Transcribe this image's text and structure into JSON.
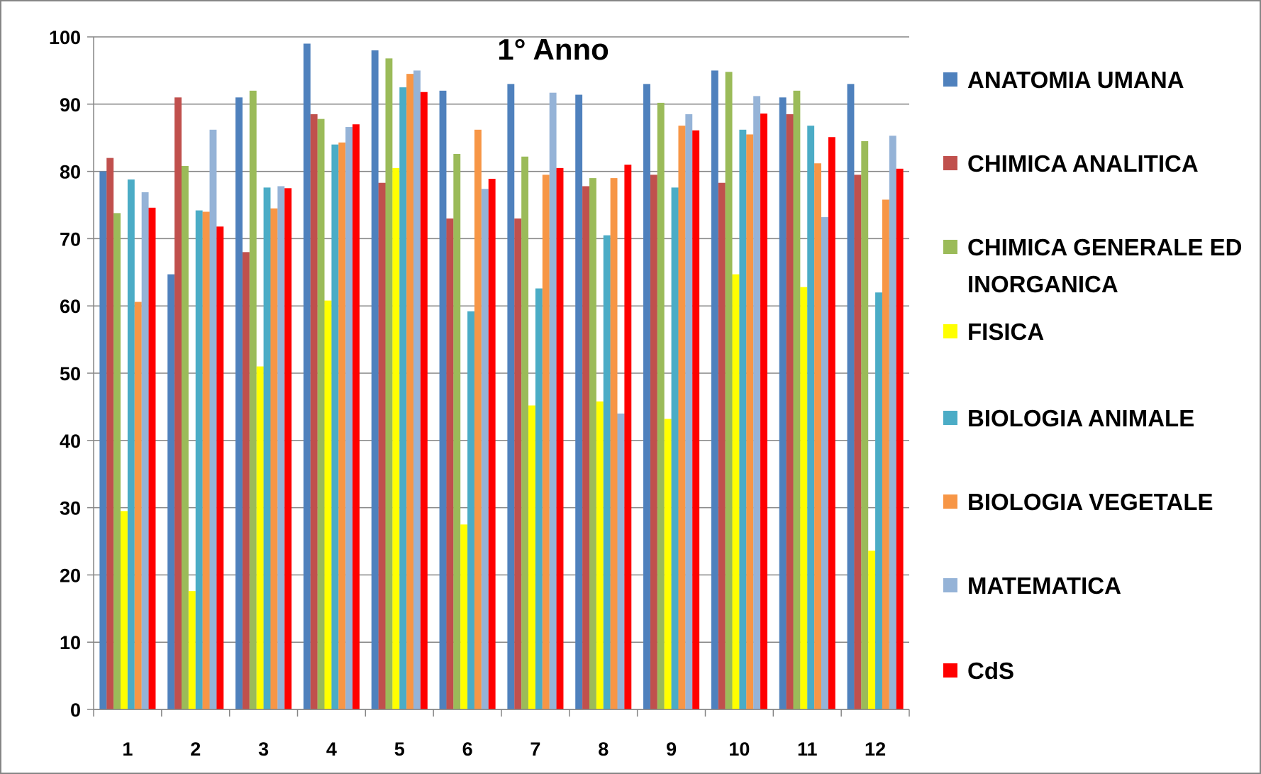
{
  "chart_data": {
    "type": "bar",
    "title": "1° Anno",
    "xlabel": "",
    "ylabel": "",
    "categories": [
      "1",
      "2",
      "3",
      "4",
      "5",
      "6",
      "7",
      "8",
      "9",
      "10",
      "11",
      "12"
    ],
    "ylim": [
      0,
      100
    ],
    "yticks": [
      0,
      10,
      20,
      30,
      40,
      50,
      60,
      70,
      80,
      90,
      100
    ],
    "grid": true,
    "legend_position": "right",
    "series": [
      {
        "name": "ANATOMIA UMANA",
        "color": "#4F81BD",
        "values": [
          80,
          64.7,
          91,
          99,
          98,
          92,
          93,
          91.4,
          93,
          95,
          91,
          93
        ]
      },
      {
        "name": "CHIMICA ANALITICA",
        "color": "#C0504D",
        "values": [
          82,
          91,
          68,
          88.5,
          78.3,
          73,
          73,
          77.8,
          79.5,
          78.3,
          88.5,
          79.5
        ]
      },
      {
        "name": "CHIMICA GENERALE ED INORGANICA",
        "color": "#9BBB59",
        "values": [
          73.8,
          80.8,
          92,
          87.8,
          96.8,
          82.6,
          82.2,
          79,
          90.2,
          94.8,
          92,
          84.5
        ]
      },
      {
        "name": "FISICA",
        "color": "#FFFF00",
        "values": [
          29.5,
          17.6,
          51,
          60.8,
          80.5,
          27.5,
          45.2,
          45.8,
          43.2,
          64.7,
          62.8,
          23.6
        ]
      },
      {
        "name": "BIOLOGIA ANIMALE",
        "color": "#4BACC6",
        "values": [
          78.8,
          74.2,
          77.6,
          84,
          92.5,
          59.2,
          62.6,
          70.5,
          77.6,
          86.2,
          86.8,
          62
        ]
      },
      {
        "name": "BIOLOGIA VEGETALE",
        "color": "#F79646",
        "values": [
          60.6,
          74,
          74.5,
          84.3,
          94.5,
          86.2,
          79.5,
          79,
          86.8,
          85.5,
          81.2,
          75.8
        ]
      },
      {
        "name": "MATEMATICA",
        "color": "#95B3D7",
        "values": [
          76.9,
          86.2,
          77.8,
          86.6,
          95,
          77.4,
          91.7,
          44,
          88.5,
          91.2,
          73.2,
          85.3
        ]
      },
      {
        "name": "CdS",
        "color": "#FF0000",
        "values": [
          74.6,
          71.8,
          77.5,
          87,
          91.8,
          78.9,
          80.5,
          81,
          86.1,
          88.6,
          85.1,
          80.4
        ]
      }
    ]
  }
}
